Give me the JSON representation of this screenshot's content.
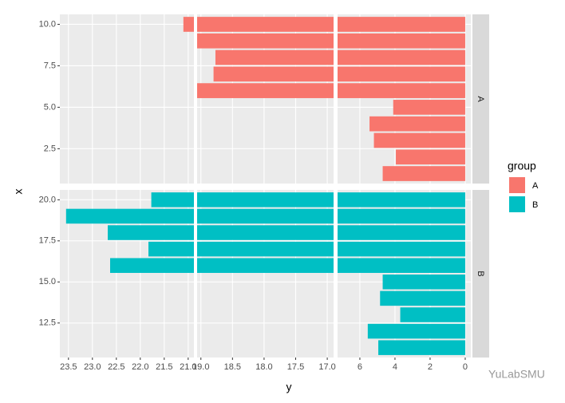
{
  "chart_data": {
    "type": "bar",
    "orientation": "horizontal",
    "xlabel": "y",
    "ylabel": "x",
    "legend_title": "group",
    "legend_position": "right",
    "grid": true,
    "series": [
      {
        "name": "A",
        "color": "#f8766d",
        "x": [
          1,
          2,
          3,
          4,
          5,
          6,
          7,
          8,
          9,
          10
        ],
        "values": [
          4.7,
          3.95,
          5.2,
          5.45,
          4.1,
          20,
          18.8,
          18.77,
          20,
          21.1
        ],
        "ylim": [
          0.4,
          10.6
        ],
        "yticks": [
          2.5,
          {
            "value": 5,
            "label": "5.0"
          },
          7.5,
          {
            "value": 10,
            "label": "10.0"
          }
        ]
      },
      {
        "name": "B",
        "color": "#00bfc4",
        "x": [
          11,
          12,
          13,
          14,
          15,
          16,
          17,
          18,
          19,
          20
        ],
        "values": [
          4.95,
          5.55,
          3.7,
          4.85,
          4.7,
          22.63,
          21.83,
          22.68,
          23.55,
          21.77
        ],
        "ylim": [
          10.4,
          20.6
        ],
        "yticks": [
          12.5,
          {
            "value": 15,
            "label": "15.0"
          },
          17.5,
          {
            "value": 20,
            "label": "20.0"
          }
        ]
      }
    ],
    "x_segments": [
      {
        "xlim": [
          20.88,
          23.68
        ],
        "xticks": [
          {
            "value": 21,
            "label": "21.0"
          },
          21.5,
          {
            "value": 22,
            "label": "22.0"
          },
          22.5,
          {
            "value": 23,
            "label": "23.0"
          },
          23.5
        ]
      },
      {
        "xlim": [
          16.9,
          19.06
        ],
        "xticks": [
          {
            "value": 17,
            "label": "17.0"
          },
          17.5,
          {
            "value": 18,
            "label": "18.0"
          },
          18.5,
          {
            "value": 19,
            "label": "19.0"
          }
        ]
      },
      {
        "xlim": [
          -0.32,
          7.27
        ],
        "xticks": [
          0,
          2,
          4,
          6
        ]
      }
    ],
    "watermark": "YuLabSMU"
  }
}
